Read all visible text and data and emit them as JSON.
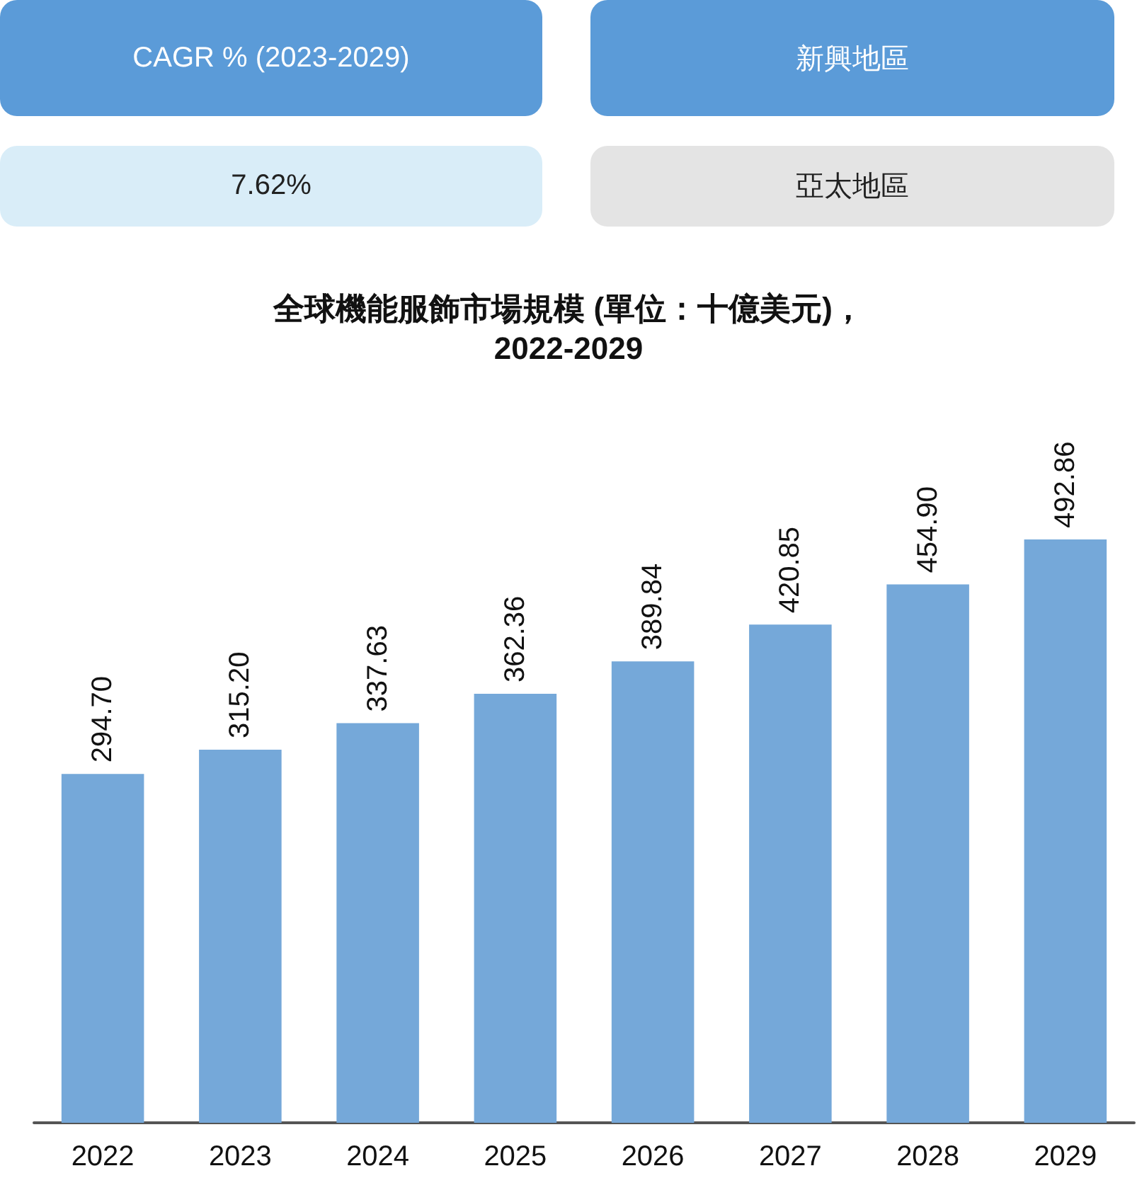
{
  "chart_data": {
    "type": "bar",
    "title": "全球機能服飾市場規模 (單位：十億美元)，",
    "subtitle": "2022-2029",
    "annotations": [
      "CAGR % (2023-2029)",
      "新興地區",
      "7.62%",
      "亞太地區"
    ],
    "categories": [
      "2022",
      "2023",
      "2024",
      "2025",
      "2026",
      "2027",
      "2028",
      "2029"
    ],
    "values": [
      294.7,
      315.2,
      337.63,
      362.36,
      389.84,
      420.85,
      454.9,
      492.86
    ],
    "value_labels": [
      "294.70",
      "315.20",
      "337.63",
      "362.36",
      "389.84",
      "420.85",
      "454.90",
      "492.86"
    ],
    "color": "#75a8d9"
  }
}
